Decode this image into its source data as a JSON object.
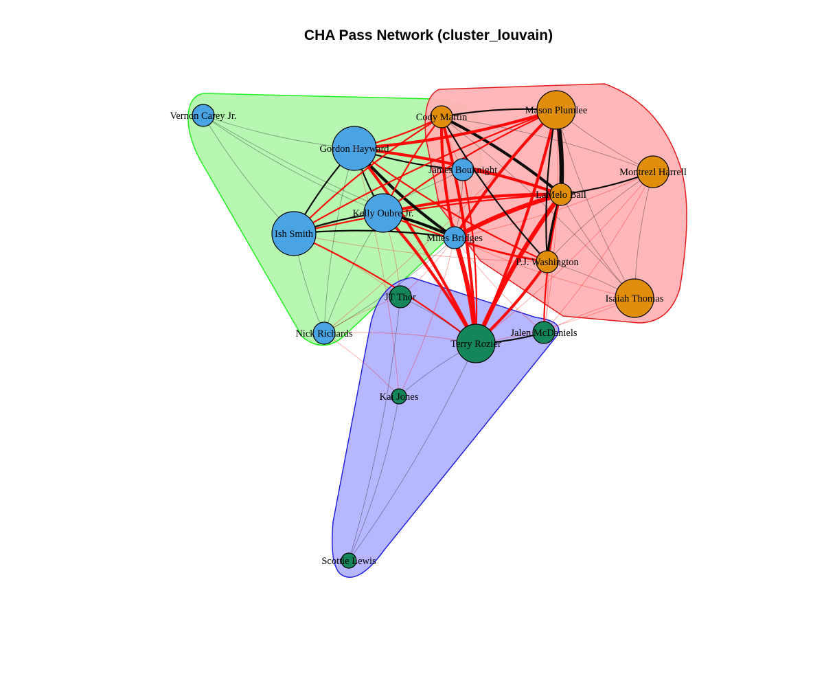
{
  "title": "CHA Pass Network (cluster_louvain)",
  "clusters": [
    {
      "id": "green",
      "fill": "#b3f7ad",
      "stroke": "#22ee22",
      "members": [
        "Vernon Carey Jr.",
        "Gordon Hayward",
        "Ish Smith",
        "Kelly Oubre Jr.",
        "Nick Richards",
        "James Bouknight",
        "Miles Bridges"
      ]
    },
    {
      "id": "red",
      "fill": "#ffb3b5",
      "stroke": "#e31a1c",
      "members": [
        "Cody Martin",
        "Mason Plumlee",
        "Montrezl Harrell",
        "LaMelo Ball",
        "P.J. Washington",
        "Isaiah Thomas"
      ]
    },
    {
      "id": "blue",
      "fill": "#b3b3ff",
      "stroke": "#2222dd",
      "members": [
        "JT Thor",
        "Jalen McDaniels",
        "Terry Rozier",
        "Kai Jones",
        "Scottie Lewis"
      ]
    }
  ],
  "colors": {
    "blue_node": "#4aa3e3",
    "orange_node": "#e08e0b",
    "green_node": "#148659",
    "intra_edge": "#000000",
    "inter_edge": "#ff0000"
  },
  "nodes": [
    {
      "name": "Vernon Carey Jr.",
      "group": "blue_node",
      "size": "small"
    },
    {
      "name": "Gordon Hayward",
      "group": "blue_node",
      "size": "xlarge"
    },
    {
      "name": "Ish Smith",
      "group": "blue_node",
      "size": "xlarge"
    },
    {
      "name": "Kelly Oubre Jr.",
      "group": "blue_node",
      "size": "large"
    },
    {
      "name": "Nick Richards",
      "group": "blue_node",
      "size": "small"
    },
    {
      "name": "James Bouknight",
      "group": "blue_node",
      "size": "small"
    },
    {
      "name": "Miles Bridges",
      "group": "blue_node",
      "size": "small"
    },
    {
      "name": "Cody Martin",
      "group": "orange_node",
      "size": "small"
    },
    {
      "name": "Mason Plumlee",
      "group": "orange_node",
      "size": "large"
    },
    {
      "name": "Montrezl Harrell",
      "group": "orange_node",
      "size": "medium"
    },
    {
      "name": "LaMelo Ball",
      "group": "orange_node",
      "size": "small"
    },
    {
      "name": "P.J. Washington",
      "group": "orange_node",
      "size": "small"
    },
    {
      "name": "Isaiah Thomas",
      "group": "orange_node",
      "size": "large"
    },
    {
      "name": "JT Thor",
      "group": "green_node",
      "size": "small"
    },
    {
      "name": "Jalen McDaniels",
      "group": "green_node",
      "size": "small"
    },
    {
      "name": "Terry Rozier",
      "group": "green_node",
      "size": "large"
    },
    {
      "name": "Kai Jones",
      "group": "green_node",
      "size": "tiny"
    },
    {
      "name": "Scottie Lewis",
      "group": "green_node",
      "size": "tiny"
    }
  ],
  "edges": [
    [
      "LaMelo Ball",
      "Mason Plumlee",
      4
    ],
    [
      "LaMelo Ball",
      "Terry Rozier",
      4
    ],
    [
      "LaMelo Ball",
      "Miles Bridges",
      4
    ],
    [
      "LaMelo Ball",
      "Cody Martin",
      3
    ],
    [
      "LaMelo Ball",
      "Gordon Hayward",
      3
    ],
    [
      "LaMelo Ball",
      "Kelly Oubre Jr.",
      3
    ],
    [
      "LaMelo Ball",
      "P.J. Washington",
      3
    ],
    [
      "LaMelo Ball",
      "James Bouknight",
      2
    ],
    [
      "LaMelo Ball",
      "Montrezl Harrell",
      2
    ],
    [
      "LaMelo Ball",
      "Isaiah Thomas",
      1
    ],
    [
      "LaMelo Ball",
      "Ish Smith",
      2
    ],
    [
      "LaMelo Ball",
      "Jalen McDaniels",
      2
    ],
    [
      "Terry Rozier",
      "Miles Bridges",
      4
    ],
    [
      "Terry Rozier",
      "Gordon Hayward",
      3
    ],
    [
      "Terry Rozier",
      "Mason Plumlee",
      3
    ],
    [
      "Terry Rozier",
      "Kelly Oubre Jr.",
      3
    ],
    [
      "Terry Rozier",
      "P.J. Washington",
      3
    ],
    [
      "Terry Rozier",
      "Cody Martin",
      3
    ],
    [
      "Terry Rozier",
      "Jalen McDaniels",
      2
    ],
    [
      "Terry Rozier",
      "Ish Smith",
      2
    ],
    [
      "Terry Rozier",
      "James Bouknight",
      2
    ],
    [
      "Terry Rozier",
      "Montrezl Harrell",
      1
    ],
    [
      "Terry Rozier",
      "Isaiah Thomas",
      1
    ],
    [
      "Terry Rozier",
      "Kai Jones",
      1
    ],
    [
      "Terry Rozier",
      "JT Thor",
      1
    ],
    [
      "Terry Rozier",
      "Nick Richards",
      1
    ],
    [
      "Gordon Hayward",
      "Miles Bridges",
      3
    ],
    [
      "Gordon Hayward",
      "Mason Plumlee",
      3
    ],
    [
      "Gordon Hayward",
      "Cody Martin",
      2
    ],
    [
      "Gordon Hayward",
      "Ish Smith",
      2
    ],
    [
      "Gordon Hayward",
      "Kelly Oubre Jr.",
      2
    ],
    [
      "Gordon Hayward",
      "P.J. Washington",
      2
    ],
    [
      "Gordon Hayward",
      "Nick Richards",
      1
    ],
    [
      "Gordon Hayward",
      "James Bouknight",
      2
    ],
    [
      "Mason Plumlee",
      "Miles Bridges",
      3
    ],
    [
      "Mason Plumlee",
      "Cody Martin",
      2
    ],
    [
      "Mason Plumlee",
      "Kelly Oubre Jr.",
      2
    ],
    [
      "Mason Plumlee",
      "Montrezl Harrell",
      1
    ],
    [
      "Mason Plumlee",
      "Ish Smith",
      2
    ],
    [
      "Mason Plumlee",
      "Isaiah Thomas",
      1
    ],
    [
      "Mason Plumlee",
      "P.J. Washington",
      2
    ],
    [
      "Cody Martin",
      "Miles Bridges",
      3
    ],
    [
      "Cody Martin",
      "Kelly Oubre Jr.",
      2
    ],
    [
      "Cody Martin",
      "Ish Smith",
      2
    ],
    [
      "Cody Martin",
      "P.J. Washington",
      2
    ],
    [
      "Cody Martin",
      "James Bouknight",
      1
    ],
    [
      "Miles Bridges",
      "Kelly Oubre Jr.",
      3
    ],
    [
      "Miles Bridges",
      "Ish Smith",
      2
    ],
    [
      "Miles Bridges",
      "P.J. Washington",
      2
    ],
    [
      "Miles Bridges",
      "Montrezl Harrell",
      1
    ],
    [
      "Miles Bridges",
      "Isaiah Thomas",
      1
    ],
    [
      "Miles Bridges",
      "Jalen McDaniels",
      1
    ],
    [
      "Miles Bridges",
      "James Bouknight",
      1
    ],
    [
      "Kelly Oubre Jr.",
      "Ish Smith",
      2
    ],
    [
      "Kelly Oubre Jr.",
      "P.J. Washington",
      2
    ],
    [
      "Kelly Oubre Jr.",
      "Nick Richards",
      1
    ],
    [
      "Ish Smith",
      "Nick Richards",
      1
    ],
    [
      "Ish Smith",
      "James Bouknight",
      1
    ],
    [
      "Ish Smith",
      "P.J. Washington",
      1
    ],
    [
      "Montrezl Harrell",
      "Isaiah Thomas",
      1
    ],
    [
      "Montrezl Harrell",
      "P.J. Washington",
      1
    ],
    [
      "Montrezl Harrell",
      "Cody Martin",
      1
    ],
    [
      "Isaiah Thomas",
      "P.J. Washington",
      1
    ],
    [
      "Isaiah Thomas",
      "Cody Martin",
      1
    ],
    [
      "Isaiah Thomas",
      "Jalen McDaniels",
      1
    ],
    [
      "Jalen McDaniels",
      "P.J. Washington",
      1
    ],
    [
      "Jalen McDaniels",
      "Mason Plumlee",
      1
    ],
    [
      "Jalen McDaniels",
      "Montrezl Harrell",
      1
    ],
    [
      "JT Thor",
      "Miles Bridges",
      1
    ],
    [
      "JT Thor",
      "Ish Smith",
      1
    ],
    [
      "JT Thor",
      "Nick Richards",
      1
    ],
    [
      "JT Thor",
      "Kelly Oubre Jr.",
      1
    ],
    [
      "Kai Jones",
      "Miles Bridges",
      1
    ],
    [
      "Kai Jones",
      "Gordon Hayward",
      1
    ],
    [
      "Kai Jones",
      "Nick Richards",
      1
    ],
    [
      "Vernon Carey Jr.",
      "Gordon Hayward",
      1
    ],
    [
      "Vernon Carey Jr.",
      "Ish Smith",
      1
    ],
    [
      "Vernon Carey Jr.",
      "Kelly Oubre Jr.",
      1
    ],
    [
      "Vernon Carey Jr.",
      "Miles Bridges",
      1
    ],
    [
      "Scottie Lewis",
      "Terry Rozier",
      1
    ],
    [
      "Scottie Lewis",
      "Kai Jones",
      1
    ],
    [
      "Scottie Lewis",
      "JT Thor",
      1
    ],
    [
      "Nick Richards",
      "Miles Bridges",
      1
    ],
    [
      "Nick Richards",
      "Mason Plumlee",
      1
    ]
  ]
}
